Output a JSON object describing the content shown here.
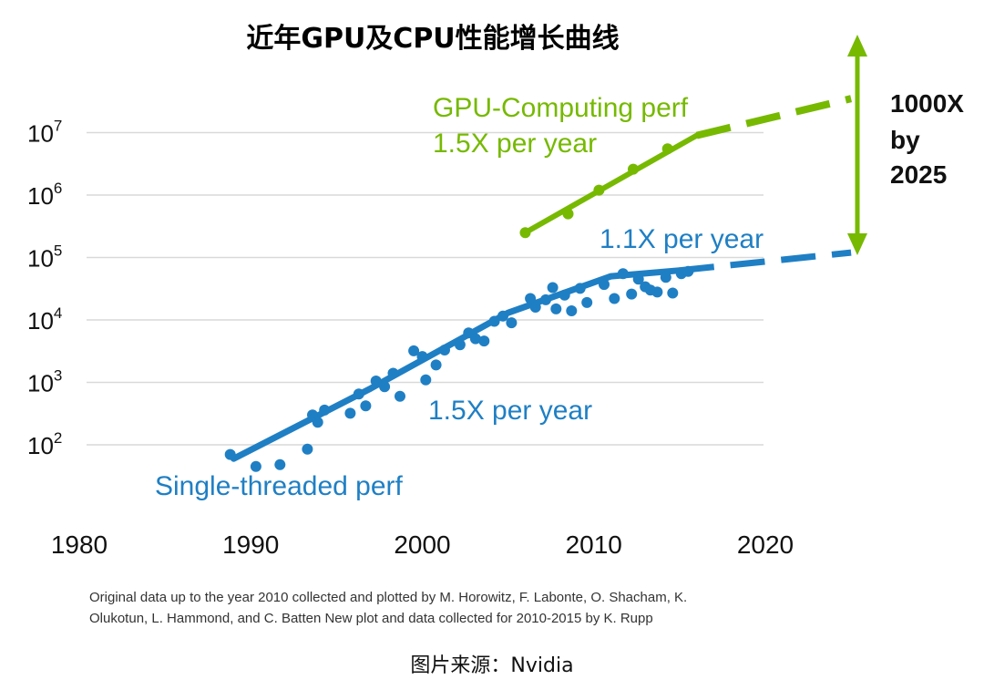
{
  "title": "近年GPU及CPU性能增长曲线",
  "chart_data": {
    "type": "scatter",
    "xlim": [
      1980,
      2020
    ],
    "y_log_scale": true,
    "ylim": [
      100,
      10000000
    ],
    "grid": "horizontal",
    "x_ticks": [
      "1980",
      "1990",
      "2000",
      "2010",
      "2020"
    ],
    "y_ticks": [
      {
        "base": "10",
        "exp": "2",
        "value": 100
      },
      {
        "base": "10",
        "exp": "3",
        "value": 1000
      },
      {
        "base": "10",
        "exp": "4",
        "value": 10000
      },
      {
        "base": "10",
        "exp": "5",
        "value": 100000
      },
      {
        "base": "10",
        "exp": "6",
        "value": 1000000
      },
      {
        "base": "10",
        "exp": "7",
        "value": 10000000
      }
    ],
    "series": [
      {
        "name": "Single-threaded perf",
        "color": "#1f7fc4",
        "points": [
          [
            1988.8,
            70
          ],
          [
            1990.3,
            45
          ],
          [
            1991.7,
            48
          ],
          [
            1993.3,
            85
          ],
          [
            1993.6,
            300
          ],
          [
            1993.9,
            230
          ],
          [
            1994.3,
            360
          ],
          [
            1995.8,
            320
          ],
          [
            1996.3,
            650
          ],
          [
            1996.7,
            420
          ],
          [
            1997.3,
            1050
          ],
          [
            1997.8,
            850
          ],
          [
            1998.3,
            1400
          ],
          [
            1998.7,
            600
          ],
          [
            1999.5,
            3200
          ],
          [
            2000.0,
            2600
          ],
          [
            2000.2,
            1100
          ],
          [
            2000.8,
            1900
          ],
          [
            2001.3,
            3300
          ],
          [
            2002.2,
            4000
          ],
          [
            2002.7,
            6200
          ],
          [
            2003.1,
            5000
          ],
          [
            2003.6,
            4600
          ],
          [
            2004.2,
            9500
          ],
          [
            2004.7,
            11500
          ],
          [
            2005.2,
            9000
          ],
          [
            2006.3,
            22000
          ],
          [
            2006.6,
            16000
          ],
          [
            2007.2,
            21000
          ],
          [
            2007.6,
            33000
          ],
          [
            2007.8,
            15000
          ],
          [
            2008.3,
            25000
          ],
          [
            2008.7,
            14000
          ],
          [
            2009.2,
            32000
          ],
          [
            2009.6,
            19000
          ],
          [
            2010.6,
            37000
          ],
          [
            2011.2,
            22000
          ],
          [
            2011.7,
            55000
          ],
          [
            2012.2,
            26000
          ],
          [
            2012.6,
            45000
          ],
          [
            2013.0,
            34000
          ],
          [
            2013.3,
            30000
          ],
          [
            2013.7,
            28000
          ],
          [
            2014.2,
            48000
          ],
          [
            2014.6,
            27000
          ],
          [
            2015.1,
            55000
          ],
          [
            2015.5,
            60000
          ]
        ],
        "trend": [
          [
            1989,
            60
          ],
          [
            1997,
            800
          ],
          [
            2005,
            13000
          ],
          [
            2011,
            50000
          ],
          [
            2015,
            62000
          ]
        ],
        "projection": [
          [
            2015,
            62000
          ],
          [
            2025,
            120000
          ]
        ]
      },
      {
        "name": "GPU-Computing perf",
        "color": "#76b900",
        "points": [
          [
            2006,
            250000
          ],
          [
            2008.5,
            500000
          ],
          [
            2010.3,
            1200000
          ],
          [
            2012.3,
            2600000
          ],
          [
            2014.3,
            5500000
          ]
        ],
        "trend": [
          [
            2006,
            250000
          ],
          [
            2016,
            9000000
          ]
        ],
        "projection": [
          [
            2016,
            9000000
          ],
          [
            2025,
            35000000
          ]
        ]
      }
    ],
    "annotations": {
      "gpu_label": "GPU-Computing perf",
      "gpu_rate": "1.5X per year",
      "cpu_rate_recent": "1.1X per year",
      "cpu_rate_early": "1.5X per year",
      "cpu_label": "Single-threaded perf",
      "gap_line1": "1000X",
      "gap_line2": "by",
      "gap_line3": "2025"
    }
  },
  "credit": {
    "line1": "Original data up to the year 2010 collected and plotted by M. Horowitz, F. Labonte, O. Shacham, K.",
    "line2": "Olukotun, L. Hammond, and C. Batten New plot and data collected for 2010-2015 by K. Rupp"
  },
  "source": "图片来源：Nvidia"
}
